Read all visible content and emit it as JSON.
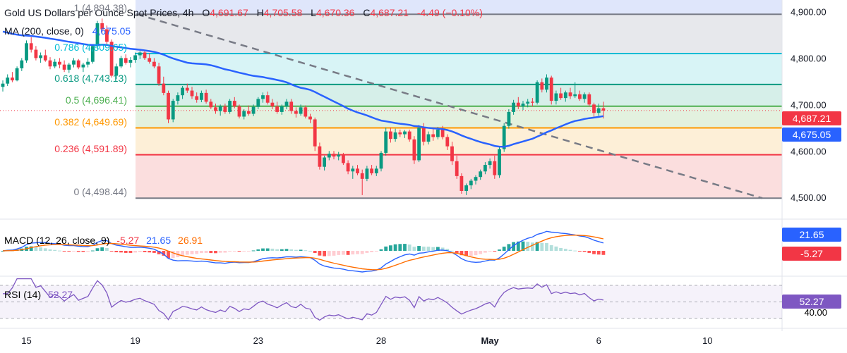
{
  "header": {
    "title": "Gold US Dollars per Ounce Spot Prices, 4h",
    "open_label": "O",
    "open": "4,691.67",
    "high_label": "H",
    "high": "4,705.58",
    "low_label": "L",
    "low": "4,670.36",
    "close_label": "C",
    "close": "4,687.21",
    "change": "-4.49 (−0.10%)"
  },
  "ma_label": {
    "name": "MA (200, close, 0)",
    "value": "4,675.05"
  },
  "price_axis": {
    "ticks": [
      "4,900.00",
      "4,800.00",
      "4,700.00",
      "4,600.00",
      "4,500.00"
    ]
  },
  "price_tags": {
    "close": "4,687.21",
    "ma": "4,675.05"
  },
  "fib_levels": [
    {
      "label": "1 (4,894.38)",
      "value": 4894.38,
      "color": "#787b86"
    },
    {
      "label": "0.786 (4,809.65)",
      "value": 4809.65,
      "color": "#00bcd4"
    },
    {
      "label": "0.618 (4,743.13)",
      "value": 4743.13,
      "color": "#089981"
    },
    {
      "label": "0.5 (4,696.41)",
      "value": 4696.41,
      "color": "#4caf50"
    },
    {
      "label": "0.382 (4,649.69)",
      "value": 4649.69,
      "color": "#ff9800"
    },
    {
      "label": "0.236 (4,591.89)",
      "value": 4591.89,
      "color": "#f23645"
    },
    {
      "label": "0 (4,498.44)",
      "value": 4498.44,
      "color": "#787b86"
    }
  ],
  "macd": {
    "label": "MACD (12, 26, close, 9)",
    "hist": "-5.27",
    "macd": "21.65",
    "signal": "26.91"
  },
  "rsi": {
    "label": "RSI (14)",
    "value": "52.27",
    "axis_tick": "40.00"
  },
  "x_axis": {
    "labels": [
      "15",
      "19",
      "23",
      "28",
      "May",
      "6",
      "10"
    ]
  },
  "colors": {
    "up": "#089981",
    "down": "#f23645",
    "ma": "#2962ff",
    "macd": "#2962ff",
    "signal": "#ff6d00",
    "rsi": "#7e57c2"
  },
  "chart_data": {
    "type": "candlestick",
    "timeframe": "4h",
    "ylim": [
      4470,
      4925
    ],
    "x_labels": [
      "15",
      "19",
      "23",
      "28",
      "May",
      "6",
      "10"
    ],
    "x_label_index": [
      5,
      28,
      54,
      80,
      103,
      126,
      149
    ],
    "candles": [
      [
        4738,
        4752,
        4728,
        4745
      ],
      [
        4745,
        4765,
        4740,
        4758
      ],
      [
        4758,
        4770,
        4748,
        4752
      ],
      [
        4752,
        4782,
        4750,
        4778
      ],
      [
        4778,
        4800,
        4772,
        4795
      ],
      [
        4795,
        4838,
        4790,
        4832
      ],
      [
        4832,
        4845,
        4812,
        4818
      ],
      [
        4818,
        4826,
        4795,
        4800
      ],
      [
        4800,
        4812,
        4790,
        4806
      ],
      [
        4806,
        4818,
        4792,
        4795
      ],
      [
        4795,
        4802,
        4776,
        4782
      ],
      [
        4782,
        4798,
        4778,
        4792
      ],
      [
        4792,
        4800,
        4778,
        4786
      ],
      [
        4786,
        4795,
        4770,
        4775
      ],
      [
        4775,
        4790,
        4768,
        4786
      ],
      [
        4786,
        4800,
        4780,
        4795
      ],
      [
        4795,
        4798,
        4776,
        4780
      ],
      [
        4780,
        4790,
        4770,
        4786
      ],
      [
        4786,
        4800,
        4780,
        4792
      ],
      [
        4792,
        4830,
        4788,
        4826
      ],
      [
        4826,
        4880,
        4820,
        4875
      ],
      [
        4875,
        4885,
        4855,
        4862
      ],
      [
        4862,
        4870,
        4830,
        4835
      ],
      [
        4835,
        4840,
        4758,
        4762
      ],
      [
        4762,
        4788,
        4755,
        4782
      ],
      [
        4782,
        4805,
        4778,
        4800
      ],
      [
        4800,
        4808,
        4786,
        4790
      ],
      [
        4790,
        4802,
        4780,
        4796
      ],
      [
        4796,
        4812,
        4790,
        4806
      ],
      [
        4806,
        4815,
        4798,
        4812
      ],
      [
        4812,
        4818,
        4796,
        4800
      ],
      [
        4800,
        4810,
        4788,
        4792
      ],
      [
        4792,
        4800,
        4778,
        4782
      ],
      [
        4782,
        4790,
        4740,
        4745
      ],
      [
        4745,
        4760,
        4720,
        4725
      ],
      [
        4725,
        4730,
        4660,
        4668
      ],
      [
        4668,
        4712,
        4662,
        4708
      ],
      [
        4708,
        4726,
        4700,
        4720
      ],
      [
        4720,
        4740,
        4712,
        4736
      ],
      [
        4736,
        4745,
        4725,
        4730
      ],
      [
        4730,
        4738,
        4712,
        4718
      ],
      [
        4718,
        4726,
        4704,
        4710
      ],
      [
        4710,
        4730,
        4705,
        4725
      ],
      [
        4725,
        4732,
        4702,
        4706
      ],
      [
        4706,
        4712,
        4690,
        4694
      ],
      [
        4694,
        4702,
        4680,
        4686
      ],
      [
        4686,
        4700,
        4676,
        4696
      ],
      [
        4696,
        4702,
        4680,
        4684
      ],
      [
        4684,
        4712,
        4680,
        4708
      ],
      [
        4708,
        4716,
        4692,
        4696
      ],
      [
        4696,
        4700,
        4670,
        4674
      ],
      [
        4674,
        4690,
        4668,
        4686
      ],
      [
        4686,
        4698,
        4676,
        4680
      ],
      [
        4680,
        4700,
        4675,
        4695
      ],
      [
        4695,
        4716,
        4690,
        4712
      ],
      [
        4712,
        4726,
        4704,
        4720
      ],
      [
        4720,
        4728,
        4700,
        4704
      ],
      [
        4704,
        4712,
        4690,
        4696
      ],
      [
        4696,
        4706,
        4680,
        4684
      ],
      [
        4684,
        4700,
        4678,
        4696
      ],
      [
        4696,
        4712,
        4690,
        4706
      ],
      [
        4706,
        4712,
        4680,
        4686
      ],
      [
        4686,
        4694,
        4672,
        4680
      ],
      [
        4680,
        4700,
        4676,
        4694
      ],
      [
        4694,
        4698,
        4670,
        4674
      ],
      [
        4674,
        4680,
        4660,
        4668
      ],
      [
        4668,
        4672,
        4600,
        4610
      ],
      [
        4610,
        4618,
        4560,
        4566
      ],
      [
        4566,
        4590,
        4558,
        4586
      ],
      [
        4586,
        4600,
        4580,
        4594
      ],
      [
        4594,
        4600,
        4582,
        4588
      ],
      [
        4588,
        4598,
        4580,
        4592
      ],
      [
        4592,
        4596,
        4570,
        4574
      ],
      [
        4574,
        4580,
        4550,
        4556
      ],
      [
        4556,
        4568,
        4540,
        4562
      ],
      [
        4562,
        4570,
        4548,
        4552
      ],
      [
        4552,
        4560,
        4505,
        4540
      ],
      [
        4540,
        4568,
        4535,
        4562
      ],
      [
        4562,
        4570,
        4548,
        4552
      ],
      [
        4552,
        4568,
        4546,
        4562
      ],
      [
        4562,
        4600,
        4556,
        4596
      ],
      [
        4596,
        4650,
        4590,
        4642
      ],
      [
        4642,
        4650,
        4618,
        4626
      ],
      [
        4626,
        4648,
        4620,
        4640
      ],
      [
        4640,
        4646,
        4630,
        4636
      ],
      [
        4636,
        4645,
        4628,
        4642
      ],
      [
        4642,
        4646,
        4620,
        4625
      ],
      [
        4625,
        4632,
        4572,
        4580
      ],
      [
        4580,
        4656,
        4576,
        4650
      ],
      [
        4650,
        4660,
        4612,
        4620
      ],
      [
        4620,
        4642,
        4614,
        4636
      ],
      [
        4636,
        4648,
        4622,
        4630
      ],
      [
        4630,
        4652,
        4625,
        4646
      ],
      [
        4646,
        4654,
        4625,
        4630
      ],
      [
        4630,
        4636,
        4602,
        4610
      ],
      [
        4610,
        4620,
        4570,
        4578
      ],
      [
        4578,
        4590,
        4540,
        4546
      ],
      [
        4546,
        4552,
        4508,
        4514
      ],
      [
        4514,
        4530,
        4505,
        4526
      ],
      [
        4526,
        4540,
        4518,
        4536
      ],
      [
        4536,
        4548,
        4528,
        4544
      ],
      [
        4544,
        4560,
        4538,
        4556
      ],
      [
        4556,
        4576,
        4550,
        4570
      ],
      [
        4570,
        4584,
        4562,
        4578
      ],
      [
        4578,
        4590,
        4540,
        4548
      ],
      [
        4548,
        4610,
        4542,
        4604
      ],
      [
        4604,
        4660,
        4598,
        4654
      ],
      [
        4654,
        4690,
        4648,
        4684
      ],
      [
        4684,
        4710,
        4678,
        4704
      ],
      [
        4704,
        4716,
        4690,
        4696
      ],
      [
        4696,
        4708,
        4688,
        4702
      ],
      [
        4702,
        4712,
        4694,
        4706
      ],
      [
        4706,
        4714,
        4696,
        4704
      ],
      [
        4704,
        4752,
        4700,
        4748
      ],
      [
        4748,
        4756,
        4726,
        4732
      ],
      [
        4732,
        4765,
        4726,
        4758
      ],
      [
        4758,
        4762,
        4700,
        4708
      ],
      [
        4708,
        4730,
        4700,
        4724
      ],
      [
        4724,
        4736,
        4710,
        4714
      ],
      [
        4714,
        4730,
        4706,
        4726
      ],
      [
        4726,
        4736,
        4712,
        4718
      ],
      [
        4718,
        4748,
        4714,
        4722
      ],
      [
        4722,
        4730,
        4708,
        4712
      ],
      [
        4712,
        4726,
        4704,
        4722
      ],
      [
        4722,
        4726,
        4696,
        4700
      ],
      [
        4700,
        4704,
        4672,
        4682
      ],
      [
        4682,
        4702,
        4676,
        4692
      ],
      [
        4692,
        4706,
        4670,
        4687
      ]
    ],
    "ma200": {
      "name": "MA (200, close, 0)",
      "last": 4675.05
    },
    "fib_retracement": [
      {
        "ratio": 1,
        "value": 4894.38
      },
      {
        "ratio": 0.786,
        "value": 4809.65
      },
      {
        "ratio": 0.618,
        "value": 4743.13
      },
      {
        "ratio": 0.5,
        "value": 4696.41
      },
      {
        "ratio": 0.382,
        "value": 4649.69
      },
      {
        "ratio": 0.236,
        "value": 4591.89
      },
      {
        "ratio": 0,
        "value": 4498.44
      }
    ],
    "trendline": {
      "from": [
        0,
        4894.38
      ],
      "to": [
        147,
        4498.44
      ]
    },
    "macd": {
      "params": "12, 26, close, 9",
      "hist": -5.27,
      "macd": 21.65,
      "signal": 26.91
    },
    "rsi": {
      "period": 14,
      "value": 52.27,
      "levels": [
        70,
        50,
        30
      ]
    }
  }
}
